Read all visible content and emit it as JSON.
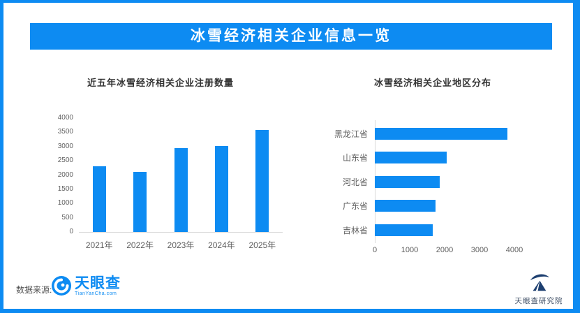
{
  "page": {
    "banner_title": "冰雪经济相关企业信息一览",
    "footer": {
      "source_label": "数据来源:",
      "brand_name": "天眼查",
      "brand_domain": "TianYanCha.com",
      "institute_name": "天眼查研究院"
    },
    "colors": {
      "primary_blue": "#0d8bf2",
      "logo_navy": "#1d3f70",
      "axis_text": "#5f5f5f",
      "axis_line": "#d9d9d9",
      "title_text": "#333333"
    },
    "icons": {
      "brand_logo": "tianyancha-eye-icon",
      "institute_logo": "mountain-swoosh-icon"
    }
  },
  "chart_data": [
    {
      "type": "bar",
      "orientation": "vertical",
      "title": "近五年冰雪经济相关企业注册数量",
      "categories": [
        "2021年",
        "2022年",
        "2023年",
        "2024年",
        "2025年"
      ],
      "values": [
        2300,
        2110,
        2950,
        3030,
        3580
      ],
      "xlabel": "",
      "ylabel": "",
      "ylim": [
        0,
        4000
      ],
      "yticks": [
        0,
        500,
        1000,
        1500,
        2000,
        2500,
        3000,
        3500,
        4000
      ],
      "grid": false,
      "legend": false,
      "bar_color": "#0d8bf2"
    },
    {
      "type": "bar",
      "orientation": "horizontal",
      "title": "冰雪经济相关企业地区分布",
      "categories": [
        "黑龙江省",
        "山东省",
        "河北省",
        "广东省",
        "吉林省"
      ],
      "values": [
        3800,
        2060,
        1850,
        1730,
        1650
      ],
      "xlabel": "",
      "ylabel": "",
      "xlim": [
        0,
        4000
      ],
      "xticks": [
        0,
        1000,
        2000,
        3000,
        4000
      ],
      "grid": false,
      "legend": false,
      "bar_color": "#0d8bf2"
    }
  ]
}
